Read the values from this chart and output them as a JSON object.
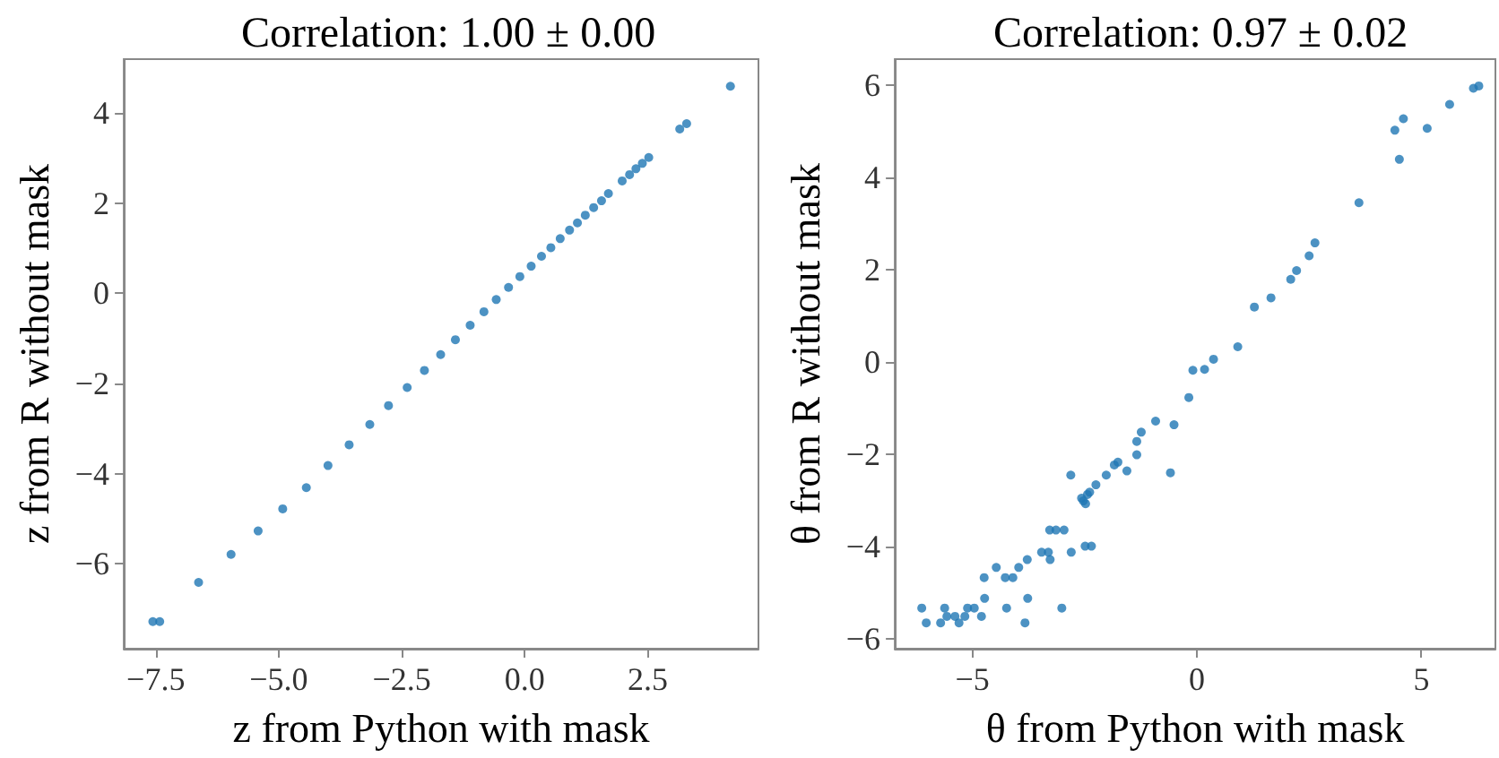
{
  "chart_data": [
    {
      "type": "scatter",
      "title": "Correlation: 1.00 ± 0.00",
      "xlabel": "z from Python with mask",
      "ylabel": "z from R without mask",
      "color": "#1f77b4",
      "marker": "circle",
      "xlim": [
        -8.15,
        4.75
      ],
      "ylim": [
        -7.88,
        5.19
      ],
      "xticks": [
        {
          "value": -7.5,
          "label": "−7.5"
        },
        {
          "value": -5,
          "label": "−5.0"
        },
        {
          "value": -2.5,
          "label": "−2.5"
        },
        {
          "value": 0,
          "label": "0.0"
        },
        {
          "value": 2.5,
          "label": "2.5"
        }
      ],
      "yticks": [
        {
          "value": -6,
          "label": "−6"
        },
        {
          "value": -4,
          "label": "−4"
        },
        {
          "value": -2,
          "label": "−2"
        },
        0,
        2,
        4
      ],
      "x": [
        -7.56,
        -7.42,
        -6.63,
        -5.97,
        -5.42,
        -4.92,
        -4.44,
        -4.0,
        -3.57,
        -3.15,
        -2.77,
        -2.39,
        -2.04,
        -1.71,
        -1.41,
        -1.11,
        -0.83,
        -0.58,
        -0.33,
        -0.1,
        0.13,
        0.34,
        0.53,
        0.72,
        0.91,
        1.07,
        1.23,
        1.4,
        1.56,
        1.7,
        1.98,
        2.13,
        2.26,
        2.39,
        2.52,
        3.15,
        3.29,
        4.18
      ],
      "values": [
        -7.28,
        -7.28,
        -6.41,
        -5.79,
        -5.27,
        -4.78,
        -4.31,
        -3.82,
        -3.36,
        -2.91,
        -2.49,
        -2.09,
        -1.71,
        -1.36,
        -1.03,
        -0.71,
        -0.41,
        -0.14,
        0.13,
        0.37,
        0.6,
        0.82,
        1.01,
        1.21,
        1.4,
        1.56,
        1.73,
        1.9,
        2.05,
        2.21,
        2.49,
        2.63,
        2.76,
        2.88,
        3.01,
        3.64,
        3.76,
        4.59
      ]
    },
    {
      "type": "scatter",
      "title": "Correlation: 0.97 ± 0.02",
      "xlabel": "θ from Python with mask",
      "ylabel": "θ from R without mask",
      "color": "#1f77b4",
      "marker": "circle",
      "xlim": [
        -6.73,
        6.65
      ],
      "ylim": [
        -6.21,
        6.56
      ],
      "xticks": [
        {
          "value": -5,
          "label": "−5"
        },
        0,
        5
      ],
      "yticks": [
        {
          "value": -6,
          "label": "−6"
        },
        {
          "value": -4,
          "label": "−4"
        },
        {
          "value": -2,
          "label": "−2"
        },
        0,
        2,
        4,
        6
      ],
      "x": [
        -6.13,
        -6.03,
        -5.71,
        -5.62,
        -5.57,
        -5.39,
        -5.3,
        -5.17,
        -5.11,
        -4.96,
        -4.8,
        -4.74,
        -4.73,
        -4.47,
        -4.27,
        -4.24,
        -4.1,
        -3.97,
        -3.83,
        -3.78,
        -3.77,
        -3.46,
        -3.31,
        -3.28,
        -3.27,
        -3.14,
        -3.01,
        -2.96,
        -2.81,
        -2.8,
        -2.57,
        -2.53,
        -2.48,
        -2.49,
        -2.44,
        -2.39,
        -2.35,
        -2.25,
        -2.02,
        -1.84,
        -1.76,
        -1.56,
        -1.34,
        -1.34,
        -1.24,
        -0.92,
        -0.59,
        -0.51,
        -0.18,
        -0.09,
        0.17,
        0.37,
        0.91,
        1.28,
        1.65,
        2.09,
        2.22,
        2.5,
        2.63,
        3.61,
        4.41,
        4.51,
        4.6,
        5.13,
        5.63,
        6.16,
        6.28
      ],
      "values": [
        -5.33,
        -5.65,
        -5.65,
        -5.33,
        -5.51,
        -5.51,
        -5.65,
        -5.51,
        -5.33,
        -5.33,
        -5.51,
        -4.67,
        -5.12,
        -4.45,
        -4.67,
        -5.33,
        -4.67,
        -4.45,
        -5.65,
        -4.28,
        -5.12,
        -4.12,
        -4.12,
        -3.64,
        -4.28,
        -3.64,
        -5.33,
        -3.64,
        -2.45,
        -4.12,
        -2.95,
        -3.01,
        -3.07,
        -3.99,
        -2.87,
        -2.82,
        -3.99,
        -2.66,
        -2.45,
        -2.23,
        -2.17,
        -2.36,
        -2.01,
        -1.72,
        -1.52,
        -1.28,
        -2.4,
        -1.36,
        -0.77,
        -0.18,
        -0.16,
        0.06,
        0.33,
        1.19,
        1.39,
        1.79,
        1.98,
        2.3,
        2.58,
        3.45,
        5.02,
        4.39,
        5.27,
        5.06,
        5.58,
        5.93,
        5.98
      ]
    }
  ]
}
